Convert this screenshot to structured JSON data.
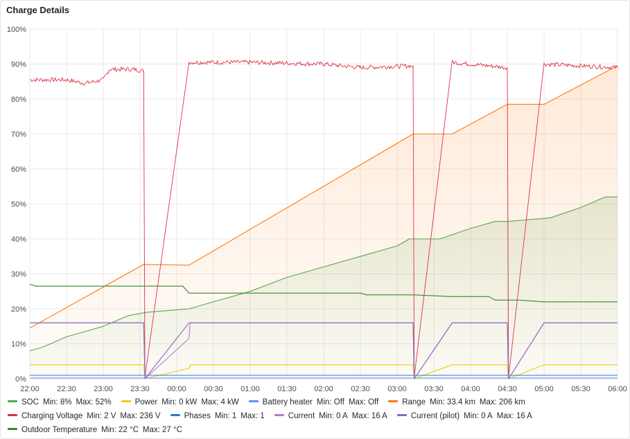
{
  "panel": {
    "title": "Charge Details"
  },
  "chart_data": {
    "type": "line",
    "title": "Charge Details",
    "x_unit": "time",
    "x_range": [
      "22:00",
      "06:00"
    ],
    "x_ticks": [
      "22:00",
      "22:30",
      "23:00",
      "23:30",
      "00:00",
      "00:30",
      "01:00",
      "01:30",
      "02:00",
      "02:30",
      "03:00",
      "03:30",
      "04:00",
      "04:30",
      "05:00",
      "05:30",
      "06:00"
    ],
    "y_range": [
      0,
      100
    ],
    "y_ticks": [
      "0%",
      "10%",
      "20%",
      "30%",
      "40%",
      "50%",
      "60%",
      "70%",
      "80%",
      "90%",
      "100%"
    ],
    "grid": true,
    "legend_position": "bottom",
    "series": [
      {
        "name": "SOC",
        "color": "#56a64b",
        "fill": true,
        "min_label": "8%",
        "max_label": "52%",
        "points": [
          [
            "22:00",
            8
          ],
          [
            "22:10",
            9
          ],
          [
            "22:30",
            12
          ],
          [
            "23:00",
            15
          ],
          [
            "23:20",
            18
          ],
          [
            "23:35",
            19
          ],
          [
            "00:10",
            20
          ],
          [
            "00:30",
            22
          ],
          [
            "01:00",
            25
          ],
          [
            "01:30",
            29
          ],
          [
            "02:00",
            32
          ],
          [
            "02:30",
            35
          ],
          [
            "03:00",
            38
          ],
          [
            "03:10",
            40
          ],
          [
            "03:35",
            40
          ],
          [
            "04:00",
            43
          ],
          [
            "04:20",
            45
          ],
          [
            "04:30",
            45
          ],
          [
            "05:05",
            46
          ],
          [
            "05:30",
            49
          ],
          [
            "05:50",
            52
          ],
          [
            "06:00",
            52
          ]
        ]
      },
      {
        "name": "Power",
        "color": "#f2cc0c",
        "fill": false,
        "min_label": "0 kW",
        "max_label": "4 kW",
        "points": [
          [
            "22:00",
            4
          ],
          [
            "23:33",
            4
          ],
          [
            "23:34",
            0
          ],
          [
            "00:10",
            3
          ],
          [
            "00:11",
            4
          ],
          [
            "03:13",
            4
          ],
          [
            "03:14",
            0
          ],
          [
            "03:45",
            4
          ],
          [
            "04:30",
            4
          ],
          [
            "04:31",
            0
          ],
          [
            "05:00",
            4
          ],
          [
            "06:00",
            4
          ]
        ]
      },
      {
        "name": "Battery heater",
        "color": "#5794f2",
        "fill": false,
        "min_label": "Off",
        "max_label": "Off",
        "points": [
          [
            "22:00",
            0.2
          ],
          [
            "06:00",
            0.2
          ]
        ]
      },
      {
        "name": "Range",
        "color": "#ff780a",
        "fill": true,
        "min_label": "33.4 km",
        "max_label": "206 km",
        "points": [
          [
            "22:00",
            14.5
          ],
          [
            "23:33",
            32.7
          ],
          [
            "00:10",
            32.5
          ],
          [
            "03:13",
            70
          ],
          [
            "03:45",
            70
          ],
          [
            "04:30",
            78.5
          ],
          [
            "05:00",
            78.5
          ],
          [
            "06:00",
            89.5
          ]
        ]
      },
      {
        "name": "Charging Voltage",
        "color": "#e02f44",
        "fill": false,
        "noisy": true,
        "min_label": "2 V",
        "max_label": "236 V",
        "points": [
          [
            "22:00",
            85.5
          ],
          [
            "22:30",
            85.5
          ],
          [
            "22:45",
            84.5
          ],
          [
            "23:00",
            85.5
          ],
          [
            "23:05",
            88.5
          ],
          [
            "23:25",
            88.5
          ],
          [
            "23:33",
            88
          ],
          [
            "23:34",
            0.5
          ],
          [
            "00:10",
            90.5
          ],
          [
            "01:00",
            90.5
          ],
          [
            "02:00",
            90
          ],
          [
            "02:30",
            89
          ],
          [
            "03:13",
            89.5
          ],
          [
            "03:14",
            0.5
          ],
          [
            "03:45",
            90.5
          ],
          [
            "04:30",
            89
          ],
          [
            "04:31",
            0.5
          ],
          [
            "05:00",
            90
          ],
          [
            "06:00",
            89
          ]
        ]
      },
      {
        "name": "Phases",
        "color": "#3274d9",
        "fill": false,
        "min_label": "1",
        "max_label": "1",
        "points": [
          [
            "22:00",
            1
          ],
          [
            "06:00",
            1
          ]
        ]
      },
      {
        "name": "Current",
        "color": "#b877d9",
        "fill": false,
        "min_label": "0 A",
        "max_label": "16 A",
        "points": [
          [
            "22:00",
            16
          ],
          [
            "23:33",
            16
          ],
          [
            "23:34",
            0
          ],
          [
            "00:10",
            11.5
          ],
          [
            "00:11",
            16
          ],
          [
            "03:13",
            16
          ],
          [
            "03:14",
            0
          ],
          [
            "03:45",
            16
          ],
          [
            "04:30",
            16
          ],
          [
            "04:31",
            0
          ],
          [
            "05:00",
            16
          ],
          [
            "06:00",
            16
          ]
        ]
      },
      {
        "name": "Current (pilot)",
        "color": "#806eb7",
        "fill": false,
        "min_label": "0 A",
        "max_label": "16 A",
        "points": [
          [
            "22:00",
            16
          ],
          [
            "23:33",
            16
          ],
          [
            "23:34",
            0
          ],
          [
            "00:10",
            16
          ],
          [
            "03:13",
            16
          ],
          [
            "03:14",
            0
          ],
          [
            "03:45",
            16
          ],
          [
            "04:30",
            16
          ],
          [
            "04:31",
            0
          ],
          [
            "05:00",
            16
          ],
          [
            "06:00",
            16
          ]
        ]
      },
      {
        "name": "Outdoor Temperature",
        "color": "#37872d",
        "fill": false,
        "min_label": "22 °C",
        "max_label": "27 °C",
        "points": [
          [
            "22:00",
            27
          ],
          [
            "22:05",
            26.5
          ],
          [
            "23:33",
            26.5
          ],
          [
            "00:05",
            26.5
          ],
          [
            "00:10",
            24.5
          ],
          [
            "02:30",
            24.5
          ],
          [
            "02:35",
            24
          ],
          [
            "03:13",
            24
          ],
          [
            "03:45",
            23.5
          ],
          [
            "04:15",
            23.5
          ],
          [
            "04:20",
            22.5
          ],
          [
            "04:40",
            22.5
          ],
          [
            "05:00",
            22
          ],
          [
            "06:00",
            22
          ]
        ]
      }
    ]
  },
  "legend": {
    "min_prefix": "Min:",
    "max_prefix": "Max:",
    "rows": [
      [
        0,
        1,
        2,
        3
      ],
      [
        4,
        5,
        6,
        7
      ],
      [
        8
      ]
    ]
  }
}
